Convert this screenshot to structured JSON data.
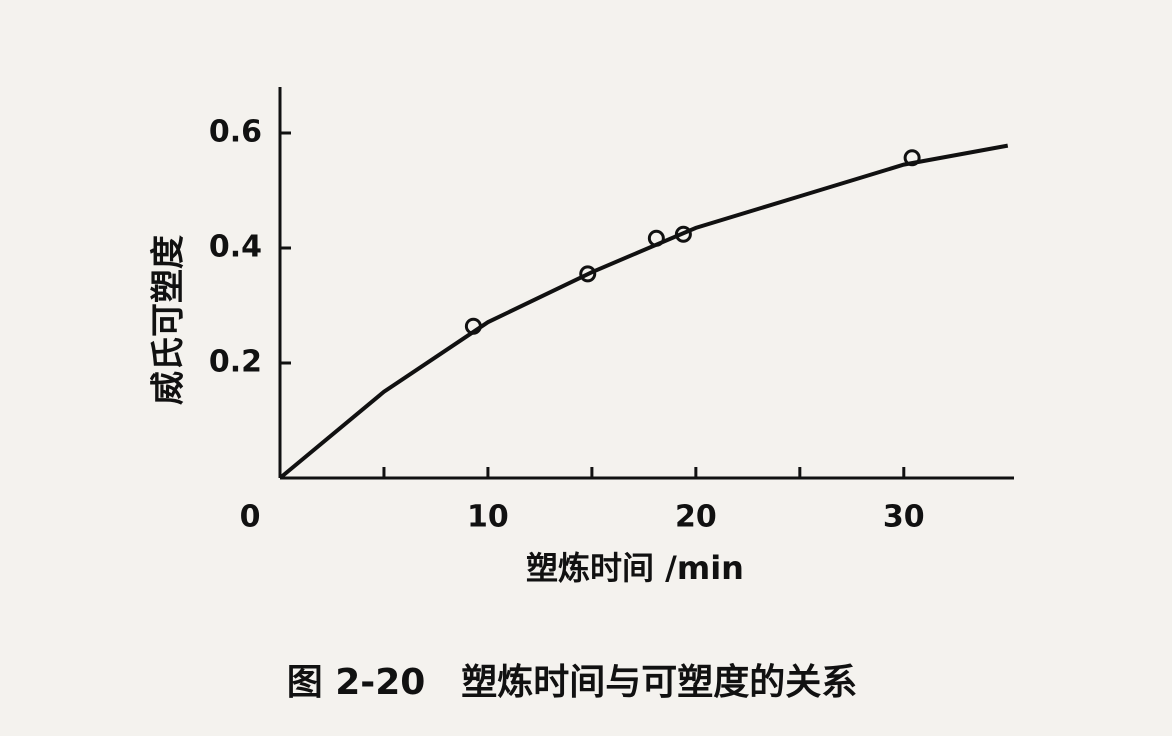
{
  "chart_data": {
    "type": "scatter",
    "ylabel": "威氏可塑度",
    "xlabel": "塑炼时间 /min",
    "caption": "图 2-20　塑炼时间与可塑度的关系",
    "xlim": [
      0,
      35.3
    ],
    "ylim": [
      0,
      0.68
    ],
    "xticks": [
      0,
      10,
      20,
      30
    ],
    "xminor_ticks": [
      5,
      15,
      25
    ],
    "yticks": [
      0.2,
      0.4,
      0.6
    ],
    "color": "#111111",
    "series": [
      {
        "mode": "markers",
        "x": [
          9.3,
          14.8,
          18.1,
          19.4,
          30.4
        ],
        "values": [
          0.264,
          0.355,
          0.417,
          0.424,
          0.557
        ]
      },
      {
        "mode": "line",
        "x": [
          0,
          5,
          10,
          15,
          20,
          25,
          30,
          35
        ],
        "values": [
          0,
          0.15,
          0.271,
          0.358,
          0.435,
          0.49,
          0.545,
          0.578
        ]
      }
    ]
  }
}
